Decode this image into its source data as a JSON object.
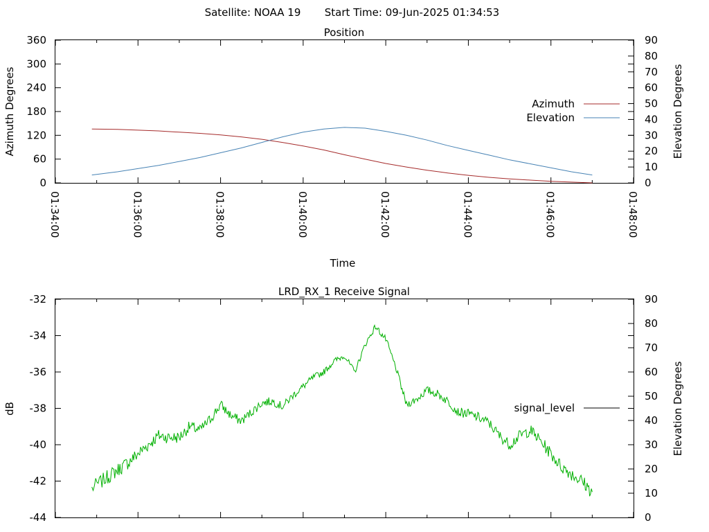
{
  "header": {
    "satellite": "Satellite: NOAA 19",
    "start_time": "Start Time: 09-Jun-2025 01:34:53"
  },
  "chart_data": [
    {
      "type": "line",
      "title": "Position",
      "xlabel": "Time",
      "ylabel": "Azimuth Degrees",
      "y2label": "Elevation Degrees",
      "xlim": [
        "01:34:00",
        "01:48:00"
      ],
      "x_ticks": [
        "01:34:00",
        "01:36:00",
        "01:38:00",
        "01:40:00",
        "01:42:00",
        "01:44:00",
        "01:46:00",
        "01:48:00"
      ],
      "ylim": [
        0,
        360
      ],
      "y_ticks": [
        "0",
        "60",
        "120",
        "180",
        "240",
        "300",
        "360"
      ],
      "y2lim": [
        0,
        90
      ],
      "y2_ticks": [
        "0",
        "10",
        "20",
        "30",
        "40",
        "50",
        "60",
        "70",
        "80",
        "90"
      ],
      "legend_position": "right",
      "series": [
        {
          "name": "Azimuth",
          "axis": "left",
          "color": "#a52a2a",
          "x": [
            "01:34:53",
            "01:35:30",
            "01:36:00",
            "01:36:30",
            "01:37:00",
            "01:37:30",
            "01:38:00",
            "01:38:30",
            "01:39:00",
            "01:39:30",
            "01:40:00",
            "01:40:30",
            "01:41:00",
            "01:41:30",
            "01:42:00",
            "01:42:30",
            "01:43:00",
            "01:43:30",
            "01:44:00",
            "01:44:30",
            "01:45:00",
            "01:45:30",
            "01:46:00",
            "01:46:30",
            "01:47:00"
          ],
          "y": [
            136,
            135,
            133,
            131,
            128,
            125,
            121,
            116,
            110,
            102,
            93,
            83,
            71,
            60,
            49,
            40,
            32,
            25,
            19,
            14,
            10,
            7,
            4,
            2,
            0
          ]
        },
        {
          "name": "Elevation",
          "axis": "right",
          "color": "#4682b4",
          "x": [
            "01:34:53",
            "01:35:30",
            "01:36:00",
            "01:36:30",
            "01:37:00",
            "01:37:30",
            "01:38:00",
            "01:38:30",
            "01:39:00",
            "01:39:30",
            "01:40:00",
            "01:40:30",
            "01:41:00",
            "01:41:30",
            "01:42:00",
            "01:42:30",
            "01:43:00",
            "01:43:30",
            "01:44:00",
            "01:44:30",
            "01:45:00",
            "01:45:30",
            "01:46:00",
            "01:46:30",
            "01:47:00"
          ],
          "y": [
            5,
            7,
            9,
            11,
            13.5,
            16,
            19,
            22,
            25.5,
            29,
            32,
            34,
            35,
            34.5,
            32.5,
            30,
            27,
            23.5,
            20.5,
            17.5,
            14.5,
            12,
            9.5,
            7,
            5
          ]
        }
      ]
    },
    {
      "type": "line",
      "title": "LRD_RX_1 Receive Signal",
      "xlabel": "",
      "ylabel": "dB",
      "y2label": "Elevation Degrees",
      "xlim": [
        "01:34:00",
        "01:48:00"
      ],
      "ylim": [
        -44,
        -32
      ],
      "y_ticks": [
        "-44",
        "-42",
        "-40",
        "-38",
        "-36",
        "-34",
        "-32"
      ],
      "y2lim": [
        0,
        90
      ],
      "y2_ticks": [
        "0",
        "10",
        "20",
        "30",
        "40",
        "50",
        "60",
        "70",
        "80",
        "90"
      ],
      "legend_position": "right",
      "series": [
        {
          "name": "signal_level",
          "color": "#00b000",
          "x": [
            "01:34:53",
            "01:35:15",
            "01:35:30",
            "01:35:45",
            "01:36:00",
            "01:36:15",
            "01:36:30",
            "01:36:45",
            "01:37:00",
            "01:37:15",
            "01:37:30",
            "01:37:45",
            "01:38:00",
            "01:38:15",
            "01:38:30",
            "01:38:45",
            "01:39:00",
            "01:39:15",
            "01:39:30",
            "01:39:45",
            "01:40:00",
            "01:40:15",
            "01:40:30",
            "01:40:45",
            "01:41:00",
            "01:41:15",
            "01:41:30",
            "01:41:45",
            "01:42:00",
            "01:42:15",
            "01:42:30",
            "01:42:45",
            "01:43:00",
            "01:43:15",
            "01:43:30",
            "01:43:45",
            "01:44:00",
            "01:44:15",
            "01:44:30",
            "01:44:45",
            "01:45:00",
            "01:45:15",
            "01:45:30",
            "01:45:45",
            "01:46:00",
            "01:46:15",
            "01:46:30",
            "01:46:45",
            "01:47:00"
          ],
          "y": [
            -42.4,
            -41.8,
            -41.4,
            -41.0,
            -40.5,
            -40.0,
            -39.5,
            -39.6,
            -39.6,
            -39.0,
            -39.2,
            -38.6,
            -37.8,
            -38.4,
            -38.7,
            -38.2,
            -37.7,
            -37.6,
            -37.9,
            -37.3,
            -36.8,
            -36.3,
            -36.0,
            -35.4,
            -35.1,
            -36.0,
            -34.5,
            -33.5,
            -34.2,
            -35.8,
            -37.8,
            -37.5,
            -37.0,
            -37.2,
            -37.6,
            -38.2,
            -38.3,
            -38.5,
            -38.8,
            -39.5,
            -40.0,
            -39.5,
            -39.2,
            -39.8,
            -40.5,
            -41.2,
            -41.6,
            -42.0,
            -42.6
          ]
        }
      ]
    }
  ]
}
